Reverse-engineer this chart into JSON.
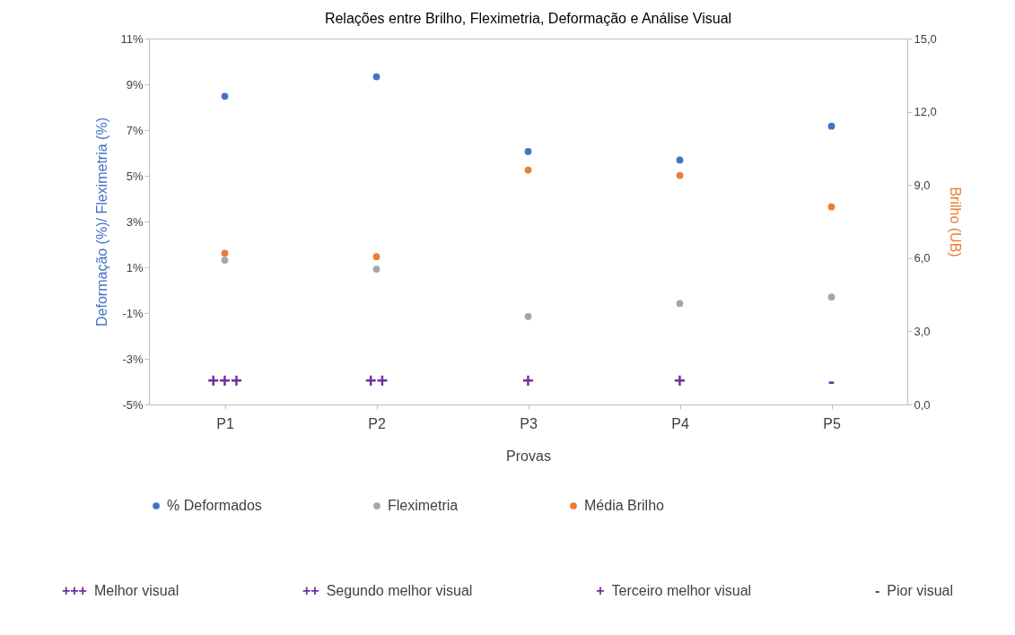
{
  "chart_data": {
    "type": "scatter",
    "title": "Relações entre Brilho, Fleximetria, Deformação e Análise Visual",
    "xlabel": "Provas",
    "ylabel": "Deformação (%)/ Fleximetria (%)",
    "y2label": "Brilho (UB)",
    "categories": [
      "P1",
      "P2",
      "P3",
      "P4",
      "P5"
    ],
    "series": [
      {
        "name": "% Deformados",
        "color": "#4472c4",
        "values": [
          8.48,
          9.33,
          6.06,
          5.69,
          7.17
        ]
      },
      {
        "name": "Fleximetria",
        "color": "#a5a5a5",
        "values": [
          1.31,
          0.92,
          -1.15,
          -0.58,
          -0.3
        ]
      },
      {
        "name": "Média Brilho",
        "color": "#ed7d31",
        "values": [
          6.2,
          6.06,
          9.61,
          9.39,
          8.1
        ],
        "axis": "y2"
      }
    ],
    "ylim": [
      -5,
      11
    ],
    "yticks": [
      {
        "value": -5,
        "label": "-5%"
      },
      {
        "value": -3,
        "label": "-3%"
      },
      {
        "value": -1,
        "label": "-1%"
      },
      {
        "value": 1,
        "label": "1%"
      },
      {
        "value": 3,
        "label": "3%"
      },
      {
        "value": 5,
        "label": "5%"
      },
      {
        "value": 7,
        "label": "7%"
      },
      {
        "value": 9,
        "label": "9%"
      },
      {
        "value": 11,
        "label": "11%"
      }
    ],
    "y2lim": [
      0,
      15
    ],
    "y2ticks": [
      {
        "value": 0,
        "label": "0,0"
      },
      {
        "value": 3,
        "label": "3,0"
      },
      {
        "value": 6,
        "label": "6,0"
      },
      {
        "value": 9,
        "label": "9,0"
      },
      {
        "value": 12,
        "label": "12,0"
      },
      {
        "value": 15,
        "label": "15,0"
      }
    ],
    "marker": "circle",
    "legend": "bottom",
    "grid": false,
    "annotations": [
      "+++",
      "++",
      "+",
      "+",
      "-",
      "+++ Melhor visual",
      "++ Segundo melhor visual",
      "+ Terceiro melhor visual",
      "- Pior visual"
    ]
  }
}
